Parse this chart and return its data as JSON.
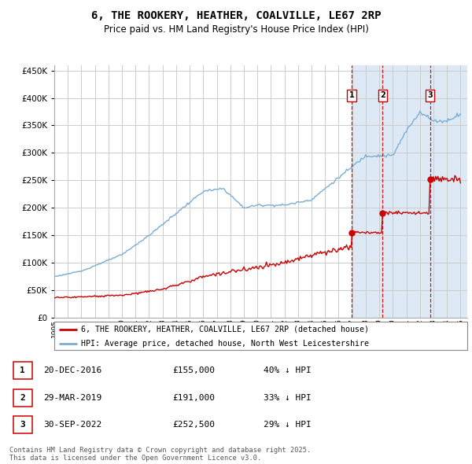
{
  "title": "6, THE ROOKERY, HEATHER, COALVILLE, LE67 2RP",
  "subtitle": "Price paid vs. HM Land Registry's House Price Index (HPI)",
  "legend_line1": "6, THE ROOKERY, HEATHER, COALVILLE, LE67 2RP (detached house)",
  "legend_line2": "HPI: Average price, detached house, North West Leicestershire",
  "footer": "Contains HM Land Registry data © Crown copyright and database right 2025.\nThis data is licensed under the Open Government Licence v3.0.",
  "purchases": [
    {
      "num": 1,
      "date": "20-DEC-2016",
      "price": "£155,000",
      "hpi": "40% ↓ HPI"
    },
    {
      "num": 2,
      "date": "29-MAR-2019",
      "price": "£191,000",
      "hpi": "33% ↓ HPI"
    },
    {
      "num": 3,
      "date": "30-SEP-2022",
      "price": "£252,500",
      "hpi": "29% ↓ HPI"
    }
  ],
  "purchase_years": [
    2016.97,
    2019.25,
    2022.75
  ],
  "purchase_prices": [
    155000,
    191000,
    252500
  ],
  "ylim": [
    0,
    460000
  ],
  "xlim_start": 1995.0,
  "xlim_end": 2025.5,
  "red_color": "#cc0000",
  "blue_color": "#7aadd4",
  "background_shaded": "#ddeaf5",
  "shaded_start": 2016.97,
  "hpi_key_years": [
    1995,
    1997,
    2000,
    2002,
    2004,
    2006,
    2007.5,
    2009,
    2010,
    2012,
    2014,
    2016,
    2018,
    2020,
    2021,
    2022,
    2023,
    2024,
    2025
  ],
  "hpi_key_vals": [
    75000,
    85000,
    115000,
    150000,
    190000,
    230000,
    235000,
    200000,
    205000,
    205000,
    215000,
    255000,
    295000,
    295000,
    340000,
    375000,
    358000,
    358000,
    372000
  ],
  "red_key_years": [
    1995,
    1997,
    2000,
    2003,
    2006,
    2009,
    2012,
    2015,
    2016.9
  ],
  "red_key_vals": [
    37000,
    38000,
    41000,
    52000,
    75000,
    88000,
    100000,
    120000,
    130000
  ]
}
